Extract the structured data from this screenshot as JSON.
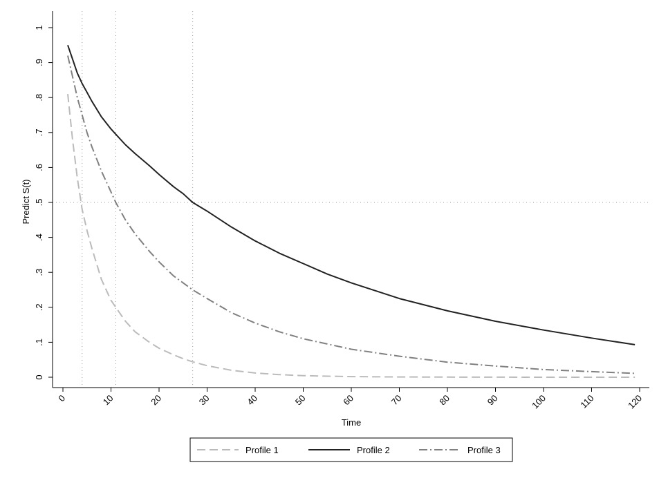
{
  "chart_data": {
    "type": "line",
    "title": "",
    "xlabel": "Time",
    "ylabel": "Predict S(t)",
    "xlim": [
      0,
      120
    ],
    "ylim": [
      0,
      1
    ],
    "x_ticks": [
      0,
      10,
      20,
      30,
      40,
      50,
      60,
      70,
      80,
      90,
      100,
      110,
      120
    ],
    "x_tick_labels": [
      "0",
      "10",
      "20",
      "30",
      "40",
      "50",
      "60",
      "70",
      "80",
      "90",
      "100",
      "110",
      "120"
    ],
    "y_ticks": [
      0,
      0.1,
      0.2,
      0.3,
      0.4,
      0.5,
      0.6,
      0.7,
      0.8,
      0.9,
      1
    ],
    "y_tick_labels": [
      "0",
      ".1",
      ".2",
      ".3",
      ".4",
      ".5",
      ".6",
      ".7",
      ".8",
      ".9",
      "1"
    ],
    "reference_lines": {
      "horizontal": [
        0.5
      ],
      "vertical": [
        4,
        11,
        27
      ]
    },
    "grid": false,
    "legend_position": "bottom",
    "series": [
      {
        "name": "Profile 1",
        "color": "#bbbbbb",
        "style": "dashed",
        "x": [
          1,
          2,
          3,
          4,
          5,
          6,
          8,
          10,
          11,
          13,
          15,
          18,
          20,
          23,
          25,
          27,
          30,
          35,
          40,
          45,
          50,
          55,
          60,
          70,
          80,
          90,
          100,
          110,
          119
        ],
        "y": [
          0.81,
          0.68,
          0.57,
          0.48,
          0.42,
          0.37,
          0.28,
          0.22,
          0.2,
          0.16,
          0.13,
          0.1,
          0.083,
          0.064,
          0.053,
          0.044,
          0.033,
          0.02,
          0.012,
          0.0075,
          0.0046,
          0.0029,
          0.0018,
          0.0007,
          0.0003,
          0.0001,
          5e-05,
          2e-05,
          1e-05
        ]
      },
      {
        "name": "Profile 2",
        "color": "#222222",
        "style": "solid",
        "x": [
          1,
          2,
          3,
          4,
          5,
          6,
          8,
          10,
          11,
          13,
          15,
          18,
          20,
          23,
          25,
          27,
          30,
          35,
          40,
          45,
          50,
          55,
          60,
          70,
          80,
          90,
          100,
          110,
          119
        ],
        "y": [
          0.95,
          0.91,
          0.87,
          0.84,
          0.815,
          0.79,
          0.745,
          0.71,
          0.695,
          0.665,
          0.64,
          0.605,
          0.58,
          0.545,
          0.525,
          0.5,
          0.475,
          0.43,
          0.39,
          0.355,
          0.325,
          0.295,
          0.27,
          0.225,
          0.19,
          0.16,
          0.135,
          0.112,
          0.093
        ]
      },
      {
        "name": "Profile 3",
        "color": "#808080",
        "style": "dash-dot",
        "x": [
          1,
          2,
          3,
          4,
          5,
          6,
          8,
          10,
          11,
          13,
          15,
          18,
          20,
          23,
          25,
          27,
          30,
          35,
          40,
          45,
          50,
          55,
          60,
          70,
          80,
          90,
          100,
          110,
          119
        ],
        "y": [
          0.92,
          0.86,
          0.8,
          0.75,
          0.7,
          0.66,
          0.59,
          0.53,
          0.5,
          0.45,
          0.41,
          0.36,
          0.33,
          0.29,
          0.27,
          0.25,
          0.225,
          0.185,
          0.155,
          0.13,
          0.11,
          0.095,
          0.08,
          0.06,
          0.043,
          0.032,
          0.022,
          0.016,
          0.011
        ]
      }
    ]
  }
}
